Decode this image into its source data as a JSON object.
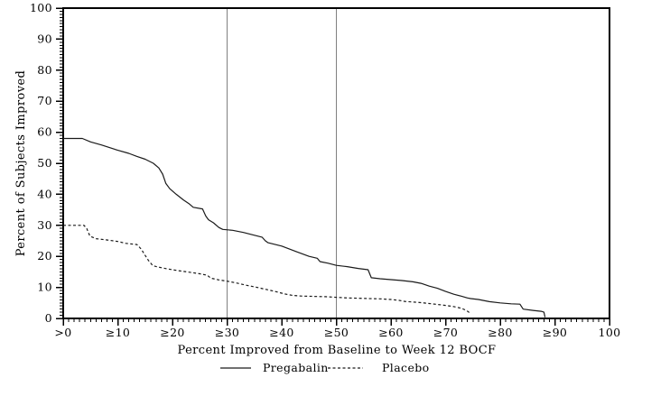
{
  "figure": {
    "background": "#ffffff"
  },
  "chart_data": {
    "type": "line",
    "title": "",
    "xlabel": "Percent Improved from Baseline to Week 12 BOCF",
    "ylabel": "Percent of Subjects Improved",
    "xlim": [
      0,
      100
    ],
    "ylim": [
      0,
      100
    ],
    "grid": false,
    "minor_tick_step": 1,
    "x_ticks": {
      "values": [
        0,
        10,
        20,
        30,
        40,
        50,
        60,
        70,
        80,
        90,
        100
      ],
      "labels": [
        ">0",
        "≥10",
        "≥20",
        "≥30",
        "≥40",
        "≥50",
        "≥60",
        "≥70",
        "≥80",
        "≥90",
        "100"
      ]
    },
    "y_ticks": {
      "values": [
        0,
        10,
        20,
        30,
        40,
        50,
        60,
        70,
        80,
        90,
        100
      ],
      "labels": [
        "0",
        "10",
        "20",
        "30",
        "40",
        "50",
        "60",
        "70",
        "80",
        "90",
        "100"
      ]
    },
    "reference_lines_x": [
      30,
      50
    ],
    "colors": {
      "axis": "#000000",
      "series": "#1a1a1a",
      "reference_line": "#808080",
      "text": "#000000",
      "background": "#ffffff"
    },
    "legend": {
      "position": "bottom",
      "entries": [
        {
          "label": "Pregabalin",
          "style": "solid"
        },
        {
          "label": "Placebo",
          "style": "dashed"
        }
      ]
    },
    "series": [
      {
        "name": "Pregabalin",
        "style": "solid",
        "points": [
          [
            0,
            58
          ],
          [
            3.5,
            58
          ],
          [
            5,
            56.9
          ],
          [
            7,
            55.9
          ],
          [
            10,
            54.2
          ],
          [
            12,
            53.2
          ],
          [
            13.5,
            52.2
          ],
          [
            15,
            51.3
          ],
          [
            16.5,
            50
          ],
          [
            17.5,
            48.5
          ],
          [
            18.2,
            46.5
          ],
          [
            18.8,
            43.5
          ],
          [
            19.5,
            41.8
          ],
          [
            20.7,
            40
          ],
          [
            22,
            38.2
          ],
          [
            23,
            37
          ],
          [
            23.8,
            35.8
          ],
          [
            25.5,
            35.3
          ],
          [
            26.1,
            33
          ],
          [
            26.6,
            31.8
          ],
          [
            27.5,
            30.8
          ],
          [
            28.5,
            29.3
          ],
          [
            29.2,
            28.7
          ],
          [
            31,
            28.4
          ],
          [
            33,
            27.7
          ],
          [
            35,
            26.8
          ],
          [
            36.4,
            26.2
          ],
          [
            37,
            25
          ],
          [
            37.5,
            24.4
          ],
          [
            40,
            23.3
          ],
          [
            43,
            21.3
          ],
          [
            45,
            20
          ],
          [
            46.5,
            19.4
          ],
          [
            47,
            18.3
          ],
          [
            48.5,
            17.8
          ],
          [
            50,
            17.1
          ],
          [
            52,
            16.7
          ],
          [
            54,
            16.1
          ],
          [
            55.8,
            15.7
          ],
          [
            56.4,
            13.1
          ],
          [
            58,
            12.8
          ],
          [
            60,
            12.5
          ],
          [
            62,
            12.2
          ],
          [
            64,
            11.8
          ],
          [
            65.5,
            11.3
          ],
          [
            67,
            10.4
          ],
          [
            68.5,
            9.7
          ],
          [
            70,
            8.7
          ],
          [
            71.5,
            7.8
          ],
          [
            72.8,
            7.2
          ],
          [
            74,
            6.6
          ],
          [
            74.6,
            6.4
          ],
          [
            76,
            6.1
          ],
          [
            78,
            5.4
          ],
          [
            80,
            5
          ],
          [
            82,
            4.7
          ],
          [
            83.6,
            4.6
          ],
          [
            84.2,
            3
          ],
          [
            86,
            2.6
          ],
          [
            87.5,
            2.3
          ],
          [
            88,
            2
          ],
          [
            88.2,
            0.4
          ]
        ]
      },
      {
        "name": "Placebo",
        "style": "dashed",
        "points": [
          [
            0,
            30
          ],
          [
            3.8,
            30
          ],
          [
            4.3,
            29
          ],
          [
            4.9,
            26.5
          ],
          [
            6,
            25.7
          ],
          [
            8,
            25.3
          ],
          [
            10,
            24.8
          ],
          [
            11.5,
            24.2
          ],
          [
            13.5,
            23.8
          ],
          [
            14.3,
            22.3
          ],
          [
            15,
            20.3
          ],
          [
            15.6,
            18.7
          ],
          [
            16.4,
            17
          ],
          [
            17.5,
            16.5
          ],
          [
            19,
            16
          ],
          [
            21,
            15.4
          ],
          [
            23,
            14.9
          ],
          [
            25,
            14.4
          ],
          [
            26.4,
            13.9
          ],
          [
            27,
            13
          ],
          [
            28.5,
            12.4
          ],
          [
            30,
            12
          ],
          [
            31.5,
            11.5
          ],
          [
            33.5,
            10.7
          ],
          [
            35.5,
            10
          ],
          [
            36.5,
            9.6
          ],
          [
            38,
            9
          ],
          [
            39,
            8.6
          ],
          [
            40.5,
            7.9
          ],
          [
            42,
            7.4
          ],
          [
            43.5,
            7.2
          ],
          [
            46,
            7.1
          ],
          [
            48,
            7
          ],
          [
            50,
            6.8
          ],
          [
            52,
            6.6
          ],
          [
            54,
            6.5
          ],
          [
            56,
            6.4
          ],
          [
            58,
            6.3
          ],
          [
            60,
            6.1
          ],
          [
            61.5,
            5.8
          ],
          [
            62.5,
            5.5
          ],
          [
            64,
            5.3
          ],
          [
            65.5,
            5.1
          ],
          [
            67,
            4.8
          ],
          [
            68.5,
            4.5
          ],
          [
            70,
            4.2
          ],
          [
            71.5,
            3.8
          ],
          [
            72.8,
            3.3
          ],
          [
            73.8,
            2.6
          ],
          [
            74.5,
            1.7
          ]
        ]
      }
    ]
  }
}
